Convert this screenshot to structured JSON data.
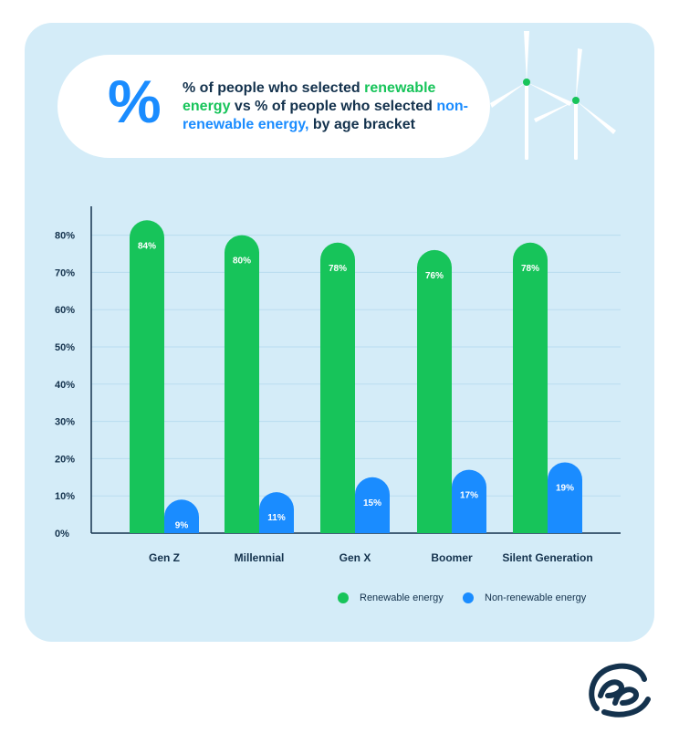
{
  "title": {
    "icon": "percent-icon",
    "symbol": "%",
    "part1": "% of people who selected ",
    "highlight1": "renewable energy",
    "part2": " vs % of people who selected ",
    "highlight2": "non-renewable energy,",
    "part3": " by age bracket"
  },
  "colors": {
    "renewable": "#17c45a",
    "nonrenewable": "#1a8cff",
    "text": "#14324d",
    "grid": "#b9dcef",
    "background": "#d4ecf8"
  },
  "chart_data": {
    "type": "bar",
    "categories": [
      "Gen Z",
      "Millennial",
      "Gen X",
      "Boomer",
      "Silent Generation"
    ],
    "series": [
      {
        "name": "Renewable energy",
        "values": [
          84,
          80,
          78,
          76,
          78
        ],
        "labels": [
          "84%",
          "80%",
          "78%",
          "76%",
          "78%"
        ]
      },
      {
        "name": "Non-renewable energy",
        "values": [
          9,
          11,
          15,
          17,
          19
        ],
        "labels": [
          "9%",
          "11%",
          "15%",
          "17%",
          "19%"
        ]
      }
    ],
    "yticks": [
      0,
      10,
      20,
      30,
      40,
      50,
      60,
      70,
      80
    ],
    "ytick_labels": [
      "0%",
      "10%",
      "20%",
      "30%",
      "40%",
      "50%",
      "60%",
      "70%",
      "80%"
    ],
    "ylim": [
      0,
      88
    ],
    "legend_position": "bottom-right"
  },
  "legend": {
    "renewable": "Renewable energy",
    "nonrenewable": "Non-renewable energy"
  }
}
